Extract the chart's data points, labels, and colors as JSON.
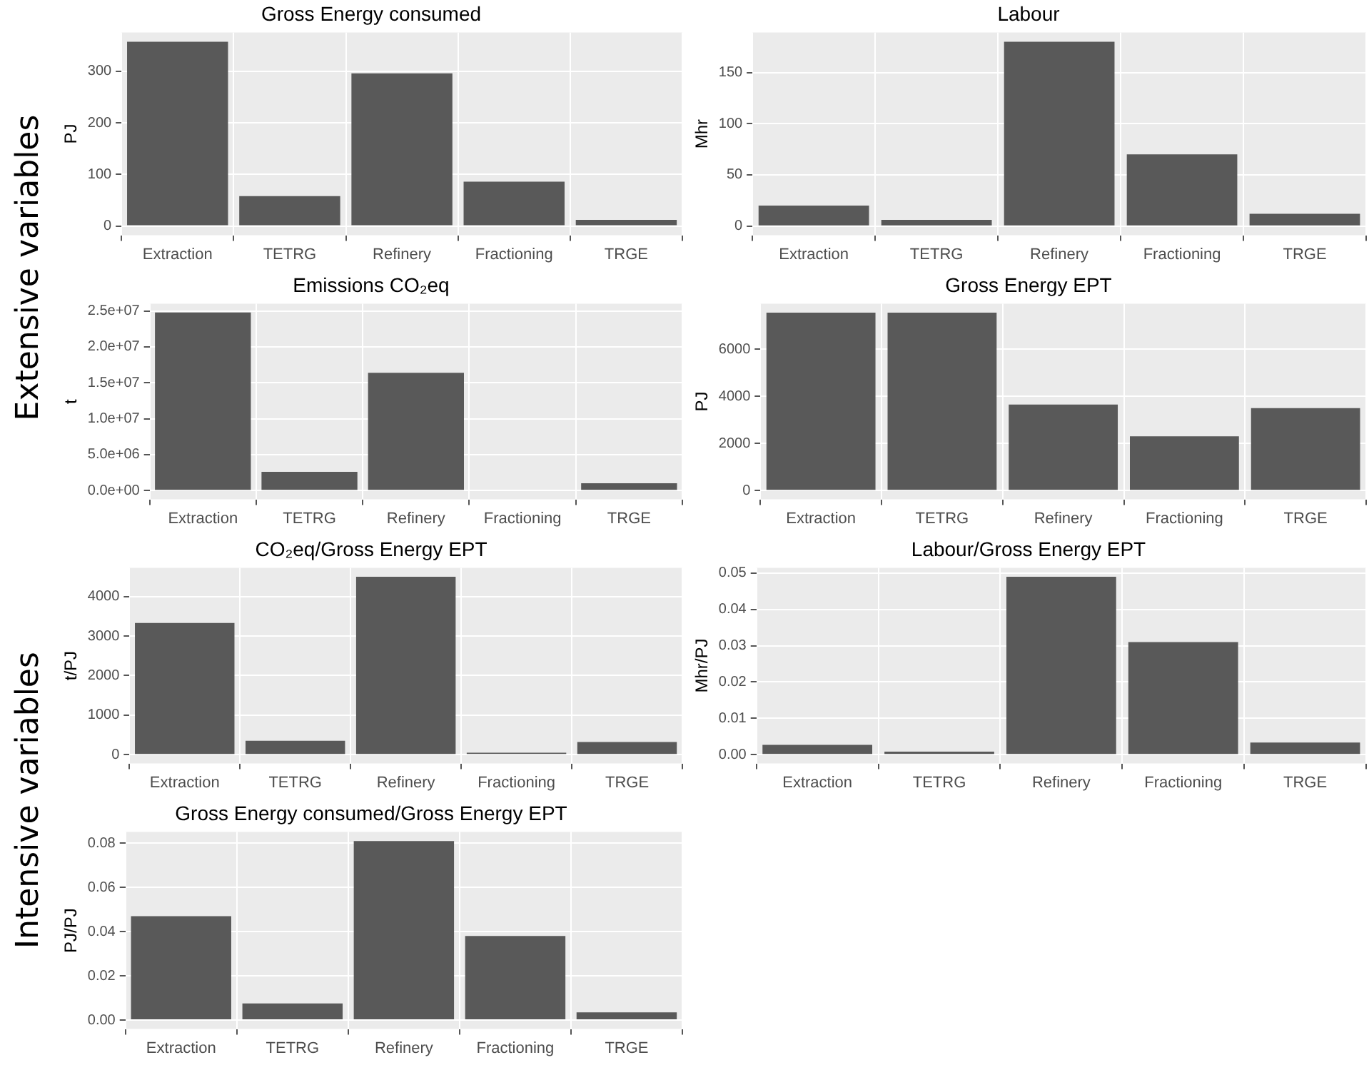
{
  "chart_data": [
    {
      "type": "bar",
      "title": "Gross Energy consumed",
      "ylabel": "PJ",
      "categories": [
        "Extraction",
        "TETRG",
        "Refinery",
        "Fractioning",
        "TRGE"
      ],
      "values": [
        357,
        58,
        296,
        86,
        12
      ],
      "color": "#595959",
      "ylim": [
        -18,
        375
      ],
      "yticks": [
        0,
        100,
        200,
        300
      ],
      "grid": true,
      "annotations": [
        "Extensive variables"
      ]
    },
    {
      "type": "bar",
      "title": "Labour",
      "ylabel": "Mhr",
      "categories": [
        "Extraction",
        "TETRG",
        "Refinery",
        "Fractioning",
        "TRGE"
      ],
      "values": [
        20,
        6,
        180,
        70,
        12
      ],
      "color": "#595959",
      "ylim": [
        -9,
        189
      ],
      "yticks": [
        0,
        50,
        100,
        150
      ],
      "grid": true
    },
    {
      "type": "bar",
      "title": "Emissions CO₂eq",
      "ylabel": "t",
      "categories": [
        "Extraction",
        "TETRG",
        "Refinery",
        "Fractioning",
        "TRGE"
      ],
      "values": [
        24800000,
        2600000,
        16400000,
        0,
        1000000
      ],
      "color": "#595959",
      "ylim": [
        -1240000,
        26000000
      ],
      "yticks": [
        {
          "value": 0,
          "label": "0.0e+00"
        },
        {
          "value": 5000000,
          "label": "5.0e+06"
        },
        {
          "value": 10000000,
          "label": "1.0e+07"
        },
        {
          "value": 15000000,
          "label": "1.5e+07"
        },
        {
          "value": 20000000,
          "label": "2.0e+07"
        },
        {
          "value": 25000000,
          "label": "2.5e+07"
        }
      ],
      "grid": true
    },
    {
      "type": "bar",
      "title": "Gross Energy EPT",
      "ylabel": "PJ",
      "categories": [
        "Extraction",
        "TETRG",
        "Refinery",
        "Fractioning",
        "TRGE"
      ],
      "values": [
        7550,
        7550,
        3650,
        2300,
        3500
      ],
      "color": "#595959",
      "ylim": [
        -378,
        7928
      ],
      "yticks": [
        0,
        2000,
        4000,
        6000
      ],
      "grid": true
    },
    {
      "type": "bar",
      "title": "CO₂eq/Gross Energy EPT",
      "ylabel": "t/PJ",
      "categories": [
        "Extraction",
        "TETRG",
        "Refinery",
        "Fractioning",
        "TRGE"
      ],
      "values": [
        3330,
        350,
        4500,
        50,
        320
      ],
      "color": "#595959",
      "ylim": [
        -225,
        4725
      ],
      "yticks": [
        0,
        1000,
        2000,
        3000,
        4000
      ],
      "grid": true,
      "annotations": [
        "Intensive variables"
      ]
    },
    {
      "type": "bar",
      "title": "Labour/Gross Energy EPT",
      "ylabel": "Mhr/PJ",
      "categories": [
        "Extraction",
        "TETRG",
        "Refinery",
        "Fractioning",
        "TRGE"
      ],
      "values": [
        0.0027,
        0.0008,
        0.049,
        0.031,
        0.0033
      ],
      "color": "#595959",
      "ylim": [
        -0.00245,
        0.05145
      ],
      "yticks": [
        {
          "value": 0,
          "label": "0.00"
        },
        {
          "value": 0.01,
          "label": "0.01"
        },
        {
          "value": 0.02,
          "label": "0.02"
        },
        {
          "value": 0.03,
          "label": "0.03"
        },
        {
          "value": 0.04,
          "label": "0.04"
        },
        {
          "value": 0.05,
          "label": "0.05"
        }
      ],
      "grid": true
    },
    {
      "type": "bar",
      "title": "Gross Energy consumed/Gross Energy EPT",
      "ylabel": "PJ/PJ",
      "categories": [
        "Extraction",
        "TETRG",
        "Refinery",
        "Fractioning",
        "TRGE"
      ],
      "values": [
        0.047,
        0.0075,
        0.081,
        0.038,
        0.0035
      ],
      "color": "#595959",
      "ylim": [
        -0.00405,
        0.08505
      ],
      "yticks": [
        {
          "value": 0,
          "label": "0.00"
        },
        {
          "value": 0.02,
          "label": "0.02"
        },
        {
          "value": 0.04,
          "label": "0.04"
        },
        {
          "value": 0.06,
          "label": "0.06"
        },
        {
          "value": 0.08,
          "label": "0.08"
        }
      ],
      "grid": true
    }
  ]
}
